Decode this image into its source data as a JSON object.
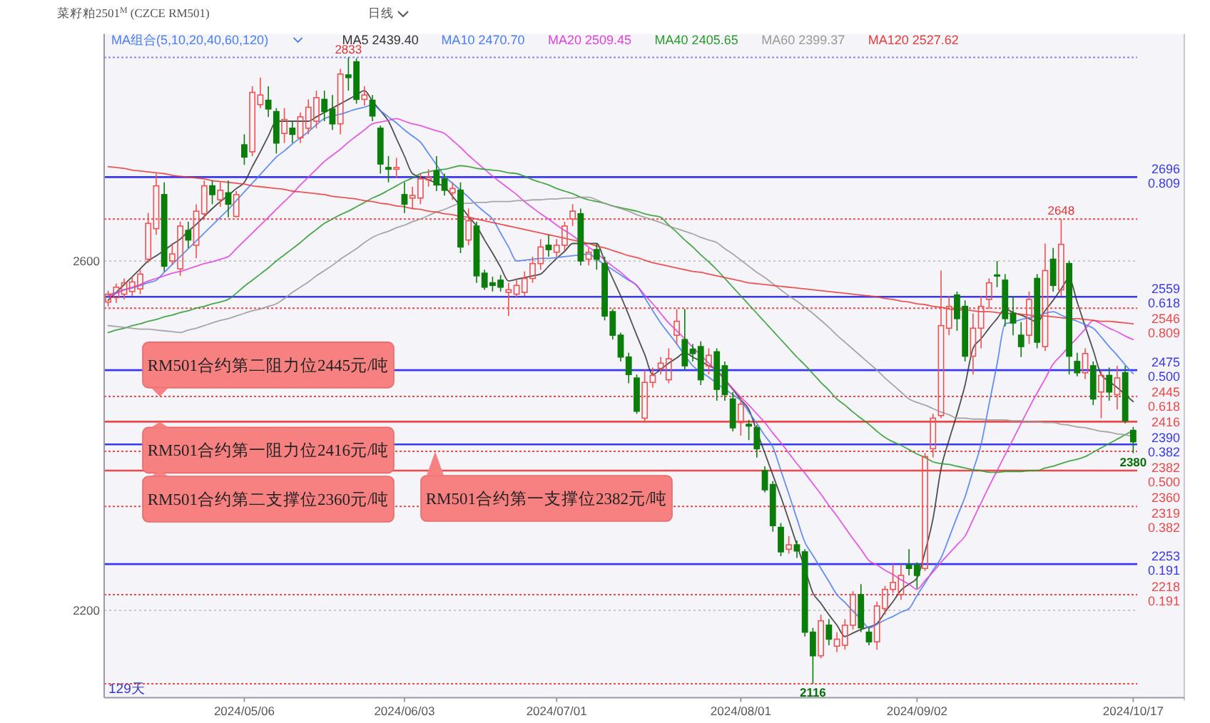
{
  "chart_data": {
    "type": "candlestick",
    "title": "菜籽粕2501$^{M}$ (CZCE RM501)",
    "subtitle": "日线",
    "legend_title": "MA组合(5,10,20,40,60,120)",
    "legend": "top",
    "grid": "y",
    "categories": [
      null,
      null,
      null,
      null,
      null,
      null,
      null,
      null,
      null,
      null,
      null,
      null,
      null,
      null,
      null,
      null,
      null,
      "2024/05/06",
      null,
      null,
      null,
      null,
      null,
      null,
      null,
      null,
      null,
      null,
      null,
      null,
      null,
      null,
      null,
      null,
      null,
      null,
      null,
      "2024/06/03",
      null,
      null,
      null,
      null,
      null,
      null,
      null,
      null,
      null,
      null,
      null,
      null,
      null,
      null,
      null,
      null,
      null,
      null,
      "2024/07/01",
      null,
      null,
      null,
      null,
      null,
      null,
      null,
      null,
      null,
      null,
      null,
      null,
      null,
      null,
      null,
      null,
      null,
      null,
      null,
      null,
      null,
      null,
      "2024/08/01",
      null,
      null,
      null,
      null,
      null,
      null,
      null,
      null,
      null,
      null,
      null,
      null,
      null,
      null,
      null,
      null,
      null,
      null,
      null,
      null,
      null,
      "2024/09/02",
      null,
      null,
      null,
      null,
      null,
      null,
      null,
      null,
      null,
      null,
      null,
      null,
      null,
      null,
      null,
      null,
      null,
      null,
      null,
      null,
      null,
      null,
      null,
      null,
      null,
      null,
      "2024/10/17"
    ],
    "ylim": [
      2100,
      2860
    ],
    "yticks": [
      2200,
      2600
    ],
    "ohlc": [
      [
        2553,
        2566,
        2548,
        2562
      ],
      [
        2558,
        2574,
        2552,
        2570
      ],
      [
        2562,
        2580,
        2556,
        2575
      ],
      [
        2565,
        2582,
        2560,
        2576
      ],
      [
        2568,
        2590,
        2562,
        2585
      ],
      [
        2602,
        2655,
        2598,
        2643
      ],
      [
        2637,
        2700,
        2630,
        2686
      ],
      [
        2676,
        2690,
        2588,
        2594
      ],
      [
        2600,
        2620,
        2595,
        2608
      ],
      [
        2591,
        2645,
        2583,
        2640
      ],
      [
        2635,
        2645,
        2615,
        2624
      ],
      [
        2618,
        2665,
        2603,
        2657
      ],
      [
        2654,
        2692,
        2648,
        2686
      ],
      [
        2686,
        2692,
        2665,
        2676
      ],
      [
        2670,
        2690,
        2662,
        2681
      ],
      [
        2678,
        2692,
        2650,
        2665
      ],
      [
        2651,
        2680,
        2650,
        2676
      ],
      [
        2733,
        2745,
        2710,
        2719
      ],
      [
        2725,
        2800,
        2720,
        2793
      ],
      [
        2779,
        2810,
        2775,
        2790
      ],
      [
        2784,
        2800,
        2765,
        2774
      ],
      [
        2771,
        2775,
        2723,
        2735
      ],
      [
        2746,
        2775,
        2735,
        2762
      ],
      [
        2752,
        2760,
        2735,
        2745
      ],
      [
        2741,
        2770,
        2735,
        2765
      ],
      [
        2752,
        2785,
        2745,
        2776
      ],
      [
        2760,
        2795,
        2752,
        2787
      ],
      [
        2785,
        2795,
        2760,
        2771
      ],
      [
        2774,
        2790,
        2750,
        2757
      ],
      [
        2757,
        2820,
        2745,
        2814
      ],
      [
        2813,
        2833,
        2795,
        2810
      ],
      [
        2828,
        2832,
        2780,
        2785
      ],
      [
        2785,
        2800,
        2778,
        2790
      ],
      [
        2784,
        2790,
        2760,
        2766
      ],
      [
        2752,
        2755,
        2700,
        2711
      ],
      [
        2707,
        2720,
        2690,
        2705
      ],
      [
        2705,
        2718,
        2695,
        2707
      ],
      [
        2676,
        2690,
        2655,
        2665
      ],
      [
        2672,
        2685,
        2660,
        2675
      ],
      [
        2672,
        2700,
        2665,
        2694
      ],
      [
        2693,
        2705,
        2685,
        2696
      ],
      [
        2703,
        2720,
        2680,
        2687
      ],
      [
        2694,
        2700,
        2675,
        2681
      ],
      [
        2678,
        2690,
        2670,
        2683
      ],
      [
        2681,
        2690,
        2609,
        2616
      ],
      [
        2624,
        2660,
        2618,
        2646
      ],
      [
        2640,
        2645,
        2575,
        2583
      ],
      [
        2586,
        2590,
        2567,
        2570
      ],
      [
        2575,
        2582,
        2565,
        2572
      ],
      [
        2578,
        2584,
        2565,
        2570
      ],
      [
        2564,
        2575,
        2537,
        2567
      ],
      [
        2562,
        2578,
        2558,
        2572
      ],
      [
        2564,
        2588,
        2560,
        2580
      ],
      [
        2580,
        2605,
        2575,
        2597
      ],
      [
        2597,
        2625,
        2590,
        2616
      ],
      [
        2618,
        2630,
        2605,
        2613
      ],
      [
        2610,
        2625,
        2605,
        2618
      ],
      [
        2618,
        2645,
        2612,
        2640
      ],
      [
        2648,
        2665,
        2640,
        2657
      ],
      [
        2654,
        2660,
        2595,
        2600
      ],
      [
        2602,
        2615,
        2595,
        2610
      ],
      [
        2613,
        2620,
        2590,
        2602
      ],
      [
        2597,
        2605,
        2532,
        2537
      ],
      [
        2542,
        2545,
        2510,
        2515
      ],
      [
        2515,
        2518,
        2485,
        2490
      ],
      [
        2490,
        2495,
        2460,
        2470
      ],
      [
        2466,
        2470,
        2425,
        2428
      ],
      [
        2420,
        2475,
        2417,
        2461
      ],
      [
        2461,
        2478,
        2455,
        2469
      ],
      [
        2477,
        2490,
        2470,
        2483
      ],
      [
        2464,
        2500,
        2460,
        2488
      ],
      [
        2515,
        2545,
        2505,
        2531
      ],
      [
        2510,
        2545,
        2475,
        2480
      ],
      [
        2499,
        2505,
        2485,
        2494
      ],
      [
        2502,
        2508,
        2458,
        2464
      ],
      [
        2480,
        2500,
        2470,
        2492
      ],
      [
        2496,
        2500,
        2440,
        2453
      ],
      [
        2480,
        2485,
        2440,
        2447
      ],
      [
        2442,
        2450,
        2405,
        2409
      ],
      [
        2415,
        2445,
        2400,
        2436
      ],
      [
        2413,
        2418,
        2395,
        2411
      ],
      [
        2409,
        2412,
        2375,
        2385
      ],
      [
        2360,
        2365,
        2335,
        2338
      ],
      [
        2344,
        2348,
        2290,
        2297
      ],
      [
        2295,
        2300,
        2262,
        2267
      ],
      [
        2270,
        2285,
        2265,
        2275
      ],
      [
        2275,
        2280,
        2260,
        2268
      ],
      [
        2267,
        2270,
        2170,
        2175
      ],
      [
        2175,
        2180,
        2116,
        2148
      ],
      [
        2148,
        2195,
        2145,
        2188
      ],
      [
        2183,
        2190,
        2160,
        2167
      ],
      [
        2159,
        2175,
        2152,
        2167
      ],
      [
        2160,
        2190,
        2155,
        2183
      ],
      [
        2183,
        2222,
        2178,
        2218
      ],
      [
        2218,
        2230,
        2175,
        2180
      ],
      [
        2175,
        2180,
        2160,
        2164
      ],
      [
        2164,
        2210,
        2155,
        2205
      ],
      [
        2202,
        2228,
        2195,
        2224
      ],
      [
        2224,
        2253,
        2220,
        2232
      ],
      [
        2218,
        2253,
        2212,
        2240
      ],
      [
        2252,
        2270,
        2240,
        2248
      ],
      [
        2252,
        2255,
        2225,
        2240
      ],
      [
        2248,
        2380,
        2245,
        2376
      ],
      [
        2385,
        2425,
        2375,
        2420
      ],
      [
        2423,
        2589,
        2420,
        2526
      ],
      [
        2523,
        2560,
        2515,
        2548
      ],
      [
        2561,
        2565,
        2520,
        2534
      ],
      [
        2548,
        2555,
        2485,
        2491
      ],
      [
        2491,
        2540,
        2470,
        2523
      ],
      [
        2523,
        2560,
        2500,
        2548
      ],
      [
        2556,
        2580,
        2545,
        2575
      ],
      [
        2584,
        2600,
        2570,
        2583
      ],
      [
        2578,
        2585,
        2525,
        2534
      ],
      [
        2540,
        2560,
        2515,
        2529
      ],
      [
        2515,
        2530,
        2490,
        2502
      ],
      [
        2515,
        2565,
        2505,
        2556
      ],
      [
        2580,
        2585,
        2500,
        2507
      ],
      [
        2502,
        2620,
        2497,
        2589
      ],
      [
        2602,
        2615,
        2565,
        2572
      ],
      [
        2567,
        2648,
        2560,
        2619
      ],
      [
        2597,
        2600,
        2470,
        2491
      ],
      [
        2485,
        2495,
        2468,
        2472
      ],
      [
        2472,
        2500,
        2465,
        2494
      ],
      [
        2480,
        2485,
        2435,
        2442
      ],
      [
        2450,
        2475,
        2420,
        2469
      ],
      [
        2469,
        2478,
        2440,
        2450
      ],
      [
        2447,
        2480,
        2430,
        2466
      ],
      [
        2472,
        2480,
        2414,
        2417
      ],
      [
        2406,
        2410,
        2380,
        2393
      ]
    ],
    "series": [
      {
        "type": "line",
        "name": "MA5 2439.40",
        "color": "#333333",
        "values": [
          2555,
          2564,
          2573,
          2582,
          2591,
          2600,
          2606,
          2612,
          2619,
          2625,
          2634,
          2642,
          2651,
          2660,
          2668,
          2675,
          2683,
          2690,
          2708,
          2725,
          2743,
          2760,
          2760,
          2760,
          2760,
          2760,
          2765,
          2770,
          2775,
          2780,
          2785,
          2790,
          2795,
          2783,
          2772,
          2760,
          2740,
          2720,
          2700,
          2696,
          2693,
          2689,
          2685,
          2674,
          2663,
          2651,
          2640,
          2624,
          2609,
          2593,
          2577,
          2579,
          2581,
          2583,
          2585,
          2594,
          2603,
          2611,
          2620,
          2620,
          2620,
          2620,
          2600,
          2580,
          2560,
          2538,
          2515,
          2493,
          2470,
          2476,
          2483,
          2489,
          2495,
          2490,
          2485,
          2480,
          2475,
          2464,
          2453,
          2441,
          2430,
          2405,
          2380,
          2355,
          2330,
          2303,
          2275,
          2248,
          2220,
          2208,
          2195,
          2183,
          2170,
          2174,
          2178,
          2181,
          2185,
          2198,
          2210,
          2223,
          2230,
          2237,
          2267,
          2305,
          2362,
          2395,
          2425,
          2458,
          2500,
          2511,
          2523,
          2534,
          2545,
          2541,
          2538,
          2534,
          2530,
          2543,
          2555,
          2568,
          2580,
          2553,
          2525,
          2498,
          2470,
          2462,
          2455,
          2447,
          2439
        ]
      },
      {
        "type": "line",
        "name": "MA10 2470.70",
        "color": "#4a7ef0",
        "values": [
          2561,
          2564,
          2567,
          2569,
          2572,
          2575,
          2578,
          2587,
          2596,
          2605,
          2614,
          2623,
          2632,
          2641,
          2650,
          2659,
          2669,
          2679,
          2689,
          2699,
          2709,
          2719,
          2726,
          2734,
          2741,
          2748,
          2756,
          2763,
          2766,
          2768,
          2771,
          2774,
          2776,
          2779,
          2772,
          2765,
          2758,
          2750,
          2743,
          2736,
          2723,
          2710,
          2697,
          2689,
          2681,
          2673,
          2664,
          2656,
          2648,
          2632,
          2616,
          2600,
          2601,
          2602,
          2603,
          2603,
          2604,
          2605,
          2606,
          2607,
          2608,
          2602,
          2596,
          2590,
          2584,
          2578,
          2572,
          2558,
          2543,
          2529,
          2517,
          2505,
          2492,
          2480,
          2473,
          2467,
          2460,
          2453,
          2447,
          2440,
          2427,
          2414,
          2400,
          2387,
          2360,
          2333,
          2305,
          2278,
          2263,
          2248,
          2233,
          2218,
          2209,
          2199,
          2190,
          2180,
          2184,
          2189,
          2193,
          2198,
          2202,
          2217,
          2231,
          2246,
          2260,
          2283,
          2307,
          2330,
          2360,
          2390,
          2436,
          2482,
          2528,
          2530,
          2533,
          2535,
          2537,
          2540,
          2542,
          2538,
          2534,
          2531,
          2527,
          2523,
          2513,
          2502,
          2492,
          2481,
          2471
        ]
      },
      {
        "type": "line",
        "name": "MA20 2509.45",
        "color": "#e040e0",
        "values": [
          2560,
          2563,
          2567,
          2570,
          2573,
          2577,
          2580,
          2583,
          2586,
          2588,
          2591,
          2594,
          2597,
          2599,
          2602,
          2605,
          2614,
          2623,
          2632,
          2641,
          2650,
          2659,
          2668,
          2677,
          2687,
          2696,
          2705,
          2714,
          2721,
          2728,
          2736,
          2743,
          2750,
          2757,
          2759,
          2761,
          2763,
          2760,
          2757,
          2755,
          2752,
          2749,
          2746,
          2738,
          2730,
          2721,
          2713,
          2705,
          2697,
          2690,
          2683,
          2676,
          2668,
          2661,
          2654,
          2648,
          2641,
          2635,
          2629,
          2622,
          2616,
          2609,
          2601,
          2594,
          2587,
          2579,
          2572,
          2561,
          2551,
          2540,
          2529,
          2520,
          2511,
          2501,
          2492,
          2483,
          2474,
          2464,
          2454,
          2444,
          2435,
          2425,
          2415,
          2403,
          2392,
          2380,
          2368,
          2357,
          2345,
          2333,
          2320,
          2308,
          2295,
          2282,
          2270,
          2257,
          2252,
          2246,
          2241,
          2235,
          2230,
          2224,
          2234,
          2244,
          2255,
          2265,
          2275,
          2285,
          2304,
          2323,
          2342,
          2360,
          2378,
          2396,
          2414,
          2432,
          2449,
          2465,
          2482,
          2492,
          2502,
          2512,
          2522,
          2532,
          2528,
          2523,
          2519,
          2514,
          2510
        ]
      },
      {
        "type": "line",
        "name": "MA40 2405.65",
        "color": "#2a9a2a",
        "values": [
          2518,
          2521,
          2523,
          2526,
          2528,
          2531,
          2533,
          2536,
          2538,
          2541,
          2543,
          2546,
          2548,
          2551,
          2553,
          2556,
          2563,
          2571,
          2578,
          2585,
          2592,
          2600,
          2607,
          2614,
          2621,
          2629,
          2636,
          2643,
          2648,
          2653,
          2657,
          2662,
          2667,
          2672,
          2676,
          2681,
          2686,
          2691,
          2695,
          2700,
          2702,
          2704,
          2705,
          2707,
          2709,
          2708,
          2706,
          2705,
          2704,
          2703,
          2701,
          2700,
          2697,
          2693,
          2690,
          2687,
          2683,
          2680,
          2677,
          2673,
          2670,
          2668,
          2666,
          2663,
          2661,
          2659,
          2657,
          2654,
          2652,
          2650,
          2641,
          2633,
          2624,
          2616,
          2607,
          2599,
          2590,
          2580,
          2570,
          2560,
          2550,
          2540,
          2530,
          2520,
          2510,
          2500,
          2490,
          2481,
          2471,
          2461,
          2452,
          2442,
          2435,
          2427,
          2420,
          2413,
          2405,
          2398,
          2393,
          2389,
          2384,
          2379,
          2375,
          2370,
          2368,
          2367,
          2365,
          2363,
          2361,
          2360,
          2358,
          2358,
          2359,
          2359,
          2359,
          2360,
          2360,
          2363,
          2365,
          2368,
          2371,
          2373,
          2376,
          2381,
          2386,
          2391,
          2396,
          2401,
          2406
        ]
      },
      {
        "type": "line",
        "name": "MA60 2399.37",
        "color": "#999999",
        "values": [
          2526,
          2525,
          2524,
          2523,
          2522,
          2522,
          2521,
          2520,
          2519,
          2518,
          2521,
          2523,
          2526,
          2529,
          2532,
          2534,
          2537,
          2540,
          2543,
          2545,
          2548,
          2551,
          2557,
          2564,
          2570,
          2576,
          2583,
          2589,
          2595,
          2602,
          2608,
          2614,
          2621,
          2627,
          2631,
          2634,
          2638,
          2641,
          2645,
          2648,
          2652,
          2656,
          2659,
          2663,
          2666,
          2666,
          2667,
          2667,
          2668,
          2668,
          2668,
          2669,
          2669,
          2670,
          2670,
          2671,
          2671,
          2672,
          2672,
          2673,
          2673,
          2670,
          2666,
          2663,
          2660,
          2657,
          2653,
          2650,
          2647,
          2644,
          2640,
          2637,
          2634,
          2631,
          2627,
          2624,
          2621,
          2614,
          2608,
          2601,
          2594,
          2587,
          2581,
          2574,
          2567,
          2560,
          2554,
          2547,
          2540,
          2532,
          2524,
          2515,
          2507,
          2499,
          2491,
          2483,
          2475,
          2466,
          2458,
          2450,
          2442,
          2438,
          2435,
          2431,
          2427,
          2424,
          2420,
          2420,
          2419,
          2419,
          2418,
          2418,
          2418,
          2417,
          2417,
          2416,
          2416,
          2415,
          2415,
          2413,
          2412,
          2410,
          2409,
          2407,
          2405,
          2404,
          2402,
          2401,
          2399
        ]
      },
      {
        "type": "line",
        "name": "MA120 2527.62",
        "color": "#e83a3a",
        "values": [
          2708,
          2707,
          2706,
          2704,
          2703,
          2702,
          2701,
          2700,
          2698,
          2697,
          2696,
          2695,
          2694,
          2692,
          2691,
          2690,
          2689,
          2688,
          2686,
          2685,
          2684,
          2683,
          2682,
          2680,
          2679,
          2678,
          2677,
          2676,
          2674,
          2673,
          2672,
          2671,
          2669,
          2668,
          2666,
          2665,
          2663,
          2662,
          2660,
          2659,
          2657,
          2656,
          2654,
          2653,
          2651,
          2650,
          2648,
          2646,
          2644,
          2642,
          2640,
          2638,
          2636,
          2634,
          2632,
          2630,
          2628,
          2626,
          2624,
          2622,
          2620,
          2617,
          2615,
          2612,
          2609,
          2606,
          2604,
          2601,
          2598,
          2596,
          2594,
          2592,
          2590,
          2588,
          2587,
          2585,
          2583,
          2581,
          2579,
          2577,
          2575,
          2574,
          2573,
          2572,
          2571,
          2570,
          2569,
          2568,
          2567,
          2566,
          2565,
          2564,
          2563,
          2562,
          2561,
          2560,
          2559,
          2557,
          2556,
          2554,
          2553,
          2551,
          2550,
          2548,
          2547,
          2545,
          2544,
          2544,
          2543,
          2542,
          2542,
          2541,
          2540,
          2540,
          2539,
          2538,
          2537,
          2537,
          2536,
          2535,
          2534,
          2534,
          2533,
          2532,
          2531,
          2531,
          2530,
          2529,
          2528
        ]
      }
    ],
    "ref_lines": [
      {
        "axis": "y",
        "value": 2833,
        "color": "#8a8ae6",
        "line_style": "dotted"
      },
      {
        "axis": "y",
        "value": 2696,
        "label": "2696\n0.809",
        "color": "#3838f0",
        "line_style": "solid"
      },
      {
        "axis": "y",
        "value": 2648,
        "color": "#f04848",
        "line_style": "dotted"
      },
      {
        "axis": "y",
        "value": 2559,
        "label": "2559\n0.618",
        "color": "#3838f0",
        "line_style": "solid"
      },
      {
        "axis": "y",
        "value": 2546,
        "label": "2546\n0.809",
        "color": "#f04848",
        "line_style": "dotted"
      },
      {
        "axis": "y",
        "value": 2475,
        "label": "2475\n0.500",
        "color": "#3838f0",
        "line_style": "solid"
      },
      {
        "axis": "y",
        "value": 2445,
        "label": "2445\n0.618",
        "color": "#f04848",
        "line_style": "dotted"
      },
      {
        "axis": "y",
        "value": 2416,
        "label": "2416",
        "color": "#f04848",
        "line_style": "solid"
      },
      {
        "axis": "y",
        "value": 2390,
        "label": "2390\n0.382",
        "color": "#3838f0",
        "line_style": "solid"
      },
      {
        "axis": "y",
        "value": 2382,
        "label": "2382\n0.500",
        "color": "#f04848",
        "line_style": "dotted"
      },
      {
        "axis": "y",
        "value": 2360,
        "label": "2360",
        "color": "#f04848",
        "line_style": "solid"
      },
      {
        "axis": "y",
        "value": 2319,
        "label": "2319\n0.382",
        "color": "#f04848",
        "line_style": "dotted"
      },
      {
        "axis": "y",
        "value": 2253,
        "label": "2253\n0.191",
        "color": "#3838f0",
        "line_style": "solid"
      },
      {
        "axis": "y",
        "value": 2218,
        "label": "2218\n0.191",
        "color": "#f04848",
        "line_style": "dotted"
      },
      {
        "axis": "y",
        "value": 2116,
        "color": "#f04848",
        "line_style": "dotted"
      }
    ],
    "annotations": [
      {
        "text": "RM501合约第二阻力位2445元/吨",
        "y": 2445
      },
      {
        "text": "RM501合约第一阻力位2416元/吨",
        "y": 2416
      },
      {
        "text": "RM501合约第二支撑位2360元/吨",
        "y": 2360
      },
      {
        "text": "RM501合约第一支撑位2382元/吨",
        "y": 2382
      },
      {
        "text": "2833",
        "y": 2833
      },
      {
        "text": "2648",
        "y": 2648
      },
      {
        "text": "2116",
        "y": 2116
      },
      {
        "text": "2380",
        "y": 2380
      },
      "129天"
    ]
  }
}
